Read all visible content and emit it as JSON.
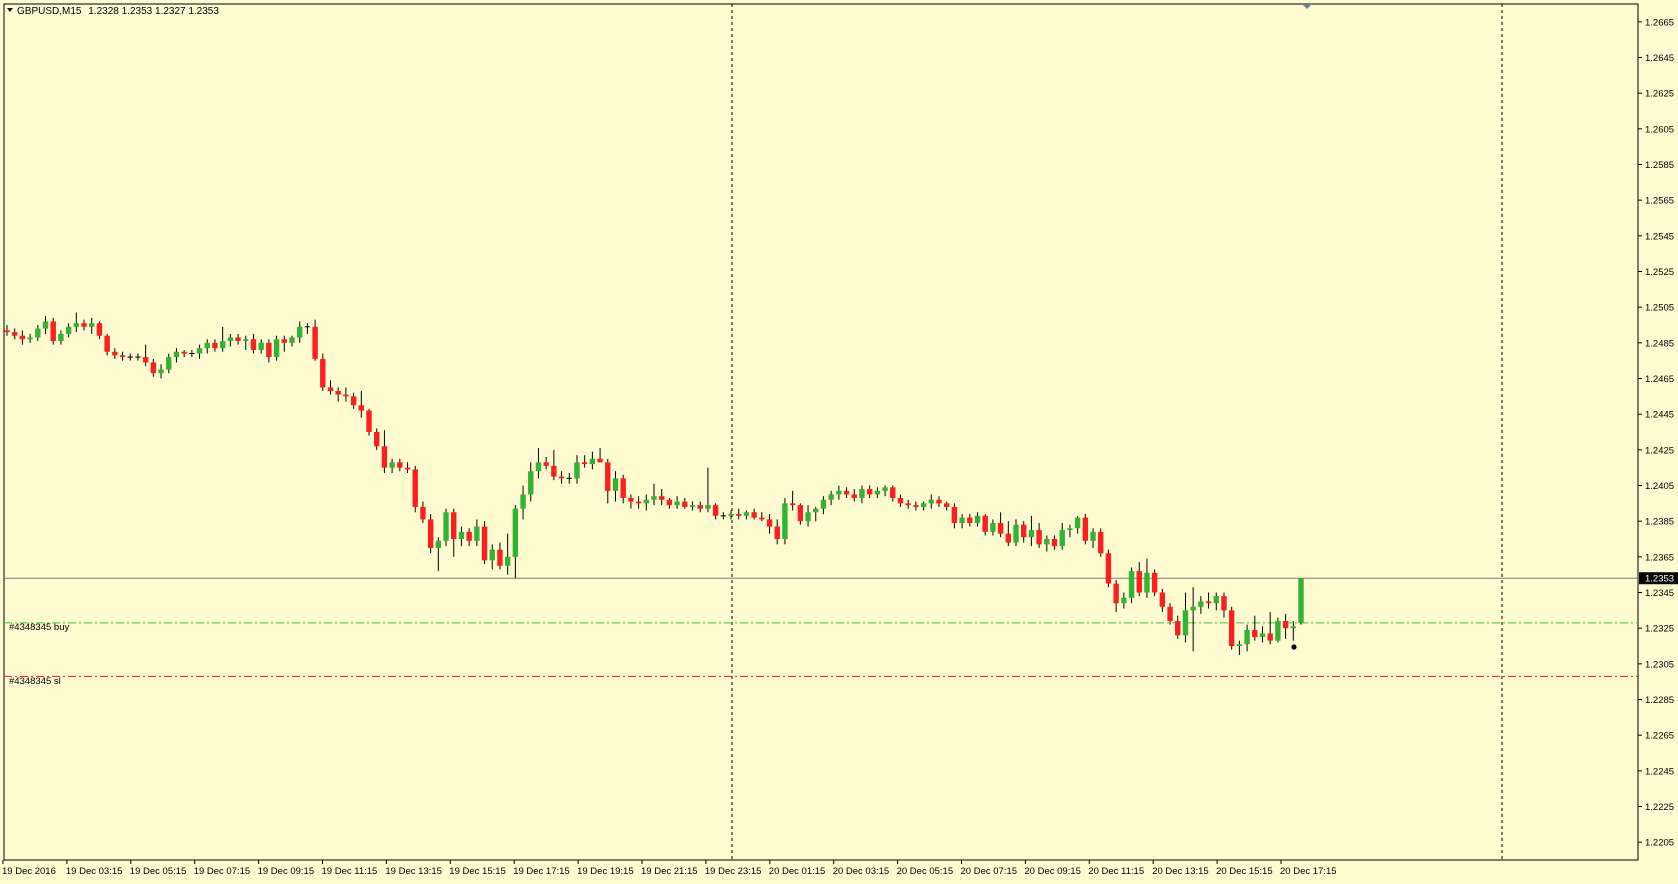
{
  "header": {
    "symbol": "GBPUSD,M15",
    "ohlc": "1.2328 1.2353 1.2327 1.2353"
  },
  "colors": {
    "background": "#fffbd1",
    "bull": "#32b432",
    "bear": "#ff1e1e",
    "wick": "#000000",
    "buy_line": "#32c832",
    "sl_line": "#e01e1e",
    "bid_line": "#7a7a7a",
    "grid_separator": "#000000"
  },
  "orders": {
    "buy_label": "#4348345 buy",
    "sl_label": "#4348345 sl",
    "buy_price": 1.2328,
    "sl_price": 1.2298
  },
  "chart_data": {
    "type": "candlestick",
    "symbol": "GBPUSD",
    "timeframe": "M15",
    "ylim": [
      1.2195,
      1.2675
    ],
    "y_ticks": [
      "1.2665",
      "1.2645",
      "1.2625",
      "1.2605",
      "1.2585",
      "1.2565",
      "1.2545",
      "1.2525",
      "1.2505",
      "1.2485",
      "1.2465",
      "1.2445",
      "1.2425",
      "1.2405",
      "1.2385",
      "1.2365",
      "1.2345",
      "1.2325",
      "1.2305",
      "1.2285",
      "1.2265",
      "1.2245",
      "1.2225",
      "1.2205"
    ],
    "current_price": "1.2353",
    "x_ticks": [
      "19 Dec 2016",
      "19 Dec 03:15",
      "19 Dec 05:15",
      "19 Dec 07:15",
      "19 Dec 09:15",
      "19 Dec 11:15",
      "19 Dec 13:15",
      "19 Dec 15:15",
      "19 Dec 17:15",
      "19 Dec 19:15",
      "19 Dec 21:15",
      "19 Dec 23:15",
      "20 Dec 01:15",
      "20 Dec 03:15",
      "20 Dec 05:15",
      "20 Dec 07:15",
      "20 Dec 09:15",
      "20 Dec 11:15",
      "20 Dec 13:15",
      "20 Dec 15:15",
      "20 Dec 17:15"
    ],
    "candles": [
      [
        1.2492,
        1.2495,
        1.2489,
        1.2491
      ],
      [
        1.2491,
        1.2493,
        1.2487,
        1.2489
      ],
      [
        1.2489,
        1.2492,
        1.2484,
        1.2487
      ],
      [
        1.2487,
        1.249,
        1.2485,
        1.2488
      ],
      [
        1.2488,
        1.2495,
        1.2486,
        1.2493
      ],
      [
        1.2493,
        1.25,
        1.249,
        1.2497
      ],
      [
        1.2497,
        1.2499,
        1.2484,
        1.2486
      ],
      [
        1.2486,
        1.2492,
        1.2484,
        1.249
      ],
      [
        1.249,
        1.2496,
        1.2488,
        1.2494
      ],
      [
        1.2494,
        1.2502,
        1.2491,
        1.2496
      ],
      [
        1.2496,
        1.2498,
        1.2492,
        1.2494
      ],
      [
        1.2494,
        1.2499,
        1.249,
        1.2496
      ],
      [
        1.2496,
        1.2497,
        1.2487,
        1.2489
      ],
      [
        1.2489,
        1.249,
        1.2478,
        1.248
      ],
      [
        1.248,
        1.2482,
        1.2476,
        1.2478
      ],
      [
        1.2478,
        1.248,
        1.2475,
        1.2477
      ],
      [
        1.2477,
        1.2479,
        1.2475,
        1.2477
      ],
      [
        1.2477,
        1.2479,
        1.2475,
        1.2477
      ],
      [
        1.2477,
        1.2484,
        1.2472,
        1.2474
      ],
      [
        1.2474,
        1.2476,
        1.2466,
        1.2468
      ],
      [
        1.2468,
        1.2473,
        1.2465,
        1.247
      ],
      [
        1.247,
        1.2479,
        1.2468,
        1.2477
      ],
      [
        1.2477,
        1.2482,
        1.2474,
        1.248
      ],
      [
        1.248,
        1.2481,
        1.2477,
        1.2479
      ],
      [
        1.2479,
        1.2481,
        1.2477,
        1.2479
      ],
      [
        1.2479,
        1.2484,
        1.2476,
        1.2482
      ],
      [
        1.2482,
        1.2487,
        1.2479,
        1.2485
      ],
      [
        1.2485,
        1.2487,
        1.248,
        1.2482
      ],
      [
        1.2482,
        1.2494,
        1.248,
        1.2486
      ],
      [
        1.2486,
        1.249,
        1.2483,
        1.2488
      ],
      [
        1.2488,
        1.249,
        1.2484,
        1.2486
      ],
      [
        1.2486,
        1.2489,
        1.2481,
        1.2487
      ],
      [
        1.2487,
        1.249,
        1.2479,
        1.2481
      ],
      [
        1.2481,
        1.2487,
        1.2479,
        1.2485
      ],
      [
        1.2485,
        1.2487,
        1.2474,
        1.2477
      ],
      [
        1.2477,
        1.2489,
        1.2475,
        1.2487
      ],
      [
        1.2487,
        1.2489,
        1.248,
        1.2485
      ],
      [
        1.2485,
        1.2489,
        1.2483,
        1.2488
      ],
      [
        1.2488,
        1.2497,
        1.2485,
        1.2494
      ],
      [
        1.2494,
        1.2496,
        1.249,
        1.2494
      ],
      [
        1.2494,
        1.2498,
        1.2475,
        1.2476
      ],
      [
        1.2476,
        1.2479,
        1.2458,
        1.246
      ],
      [
        1.246,
        1.2464,
        1.2456,
        1.2458
      ],
      [
        1.2458,
        1.246,
        1.2452,
        1.2456
      ],
      [
        1.2456,
        1.246,
        1.2452,
        1.2455
      ],
      [
        1.2455,
        1.2457,
        1.2448,
        1.245
      ],
      [
        1.245,
        1.2458,
        1.2443,
        1.2447
      ],
      [
        1.2447,
        1.2448,
        1.2433,
        1.2435
      ],
      [
        1.2435,
        1.2437,
        1.2425,
        1.2427
      ],
      [
        1.2427,
        1.2436,
        1.2412,
        1.2415
      ],
      [
        1.2415,
        1.242,
        1.2412,
        1.2418
      ],
      [
        1.2418,
        1.242,
        1.2413,
        1.2415
      ],
      [
        1.2415,
        1.2418,
        1.2412,
        1.2414
      ],
      [
        1.2414,
        1.2416,
        1.239,
        1.2393
      ],
      [
        1.2393,
        1.2396,
        1.2384,
        1.2386
      ],
      [
        1.2386,
        1.2389,
        1.2367,
        1.237
      ],
      [
        1.237,
        1.2376,
        1.2357,
        1.2374
      ],
      [
        1.2374,
        1.2392,
        1.2371,
        1.239
      ],
      [
        1.239,
        1.2392,
        1.2365,
        1.2375
      ],
      [
        1.2375,
        1.2382,
        1.2371,
        1.2379
      ],
      [
        1.2379,
        1.2381,
        1.2371,
        1.2374
      ],
      [
        1.2374,
        1.2386,
        1.2371,
        1.2382
      ],
      [
        1.2382,
        1.2385,
        1.2361,
        1.2363
      ],
      [
        1.2363,
        1.2372,
        1.2358,
        1.2369
      ],
      [
        1.2369,
        1.2373,
        1.2358,
        1.236
      ],
      [
        1.236,
        1.2378,
        1.2355,
        1.2365
      ],
      [
        1.2365,
        1.2394,
        1.2353,
        1.2392
      ],
      [
        1.2392,
        1.2405,
        1.2386,
        1.24
      ],
      [
        1.24,
        1.2418,
        1.2396,
        1.2413
      ],
      [
        1.2413,
        1.2426,
        1.2409,
        1.2418
      ],
      [
        1.2418,
        1.2421,
        1.2414,
        1.2416
      ],
      [
        1.2416,
        1.2425,
        1.2408,
        1.241
      ],
      [
        1.241,
        1.2413,
        1.2406,
        1.2409
      ],
      [
        1.2409,
        1.2412,
        1.2406,
        1.2409
      ],
      [
        1.2409,
        1.2422,
        1.2406,
        1.2418
      ],
      [
        1.2418,
        1.2422,
        1.2415,
        1.2417
      ],
      [
        1.2417,
        1.2424,
        1.2414,
        1.242
      ],
      [
        1.242,
        1.2426,
        1.2418,
        1.2418
      ],
      [
        1.2418,
        1.242,
        1.2395,
        1.2402
      ],
      [
        1.2402,
        1.2413,
        1.2396,
        1.2409
      ],
      [
        1.2409,
        1.2411,
        1.2395,
        1.2398
      ],
      [
        1.2398,
        1.24,
        1.2392,
        1.2396
      ],
      [
        1.2396,
        1.2399,
        1.2392,
        1.2395
      ],
      [
        1.2395,
        1.24,
        1.2391,
        1.2397
      ],
      [
        1.2397,
        1.2406,
        1.2394,
        1.2399
      ],
      [
        1.2399,
        1.2403,
        1.2394,
        1.2397
      ],
      [
        1.2397,
        1.2398,
        1.2392,
        1.2394
      ],
      [
        1.2394,
        1.2399,
        1.2392,
        1.2396
      ],
      [
        1.2396,
        1.2398,
        1.2392,
        1.2393
      ],
      [
        1.2393,
        1.2396,
        1.2391,
        1.2394
      ],
      [
        1.2394,
        1.2396,
        1.239,
        1.2392
      ],
      [
        1.2392,
        1.2415,
        1.239,
        1.2394
      ],
      [
        1.2394,
        1.2395,
        1.2386,
        1.2388
      ],
      [
        1.2388,
        1.239,
        1.2386,
        1.2388
      ],
      [
        1.2388,
        1.2391,
        1.2386,
        1.2389
      ],
      [
        1.2389,
        1.2392,
        1.2386,
        1.2388
      ],
      [
        1.2388,
        1.2391,
        1.2386,
        1.239
      ],
      [
        1.239,
        1.2392,
        1.2386,
        1.2387
      ],
      [
        1.2387,
        1.239,
        1.2385,
        1.2386
      ],
      [
        1.2386,
        1.2389,
        1.2378,
        1.2382
      ],
      [
        1.2382,
        1.2386,
        1.2372,
        1.2375
      ],
      [
        1.2375,
        1.2398,
        1.2372,
        1.2395
      ],
      [
        1.2395,
        1.2402,
        1.2391,
        1.2394
      ],
      [
        1.2394,
        1.2395,
        1.2383,
        1.2385
      ],
      [
        1.2385,
        1.2394,
        1.2382,
        1.239
      ],
      [
        1.239,
        1.2393,
        1.2385,
        1.2392
      ],
      [
        1.2392,
        1.2399,
        1.2389,
        1.2397
      ],
      [
        1.2397,
        1.2402,
        1.2394,
        1.24
      ],
      [
        1.24,
        1.2405,
        1.2397,
        1.2402
      ],
      [
        1.2402,
        1.2404,
        1.2398,
        1.24
      ],
      [
        1.24,
        1.2403,
        1.2396,
        1.2398
      ],
      [
        1.2398,
        1.2405,
        1.2395,
        1.2403
      ],
      [
        1.2403,
        1.2405,
        1.2398,
        1.24
      ],
      [
        1.24,
        1.2404,
        1.2398,
        1.2402
      ],
      [
        1.2402,
        1.2405,
        1.2399,
        1.2404
      ],
      [
        1.2404,
        1.2405,
        1.2396,
        1.2398
      ],
      [
        1.2398,
        1.24,
        1.2393,
        1.2395
      ],
      [
        1.2395,
        1.2397,
        1.2392,
        1.2394
      ],
      [
        1.2394,
        1.2396,
        1.2391,
        1.2393
      ],
      [
        1.2393,
        1.2396,
        1.2391,
        1.2395
      ],
      [
        1.2395,
        1.24,
        1.2392,
        1.2397
      ],
      [
        1.2397,
        1.2399,
        1.2393,
        1.2395
      ],
      [
        1.2395,
        1.2396,
        1.2391,
        1.2393
      ],
      [
        1.2393,
        1.2395,
        1.2381,
        1.2384
      ],
      [
        1.2384,
        1.2389,
        1.2381,
        1.2387
      ],
      [
        1.2387,
        1.2389,
        1.2382,
        1.2384
      ],
      [
        1.2384,
        1.239,
        1.2382,
        1.2388
      ],
      [
        1.2388,
        1.2389,
        1.2377,
        1.2379
      ],
      [
        1.2379,
        1.2386,
        1.2377,
        1.2384
      ],
      [
        1.2384,
        1.239,
        1.2376,
        1.2378
      ],
      [
        1.2378,
        1.2385,
        1.2371,
        1.2373
      ],
      [
        1.2373,
        1.2386,
        1.2371,
        1.2383
      ],
      [
        1.2383,
        1.2385,
        1.2373,
        1.2376
      ],
      [
        1.2376,
        1.2388,
        1.2371,
        1.238
      ],
      [
        1.238,
        1.2384,
        1.237,
        1.2372
      ],
      [
        1.2372,
        1.2377,
        1.2368,
        1.2375
      ],
      [
        1.2375,
        1.2377,
        1.2369,
        1.2371
      ],
      [
        1.2371,
        1.2384,
        1.2369,
        1.238
      ],
      [
        1.238,
        1.2383,
        1.2376,
        1.2381
      ],
      [
        1.2381,
        1.2388,
        1.2378,
        1.2387
      ],
      [
        1.2387,
        1.2389,
        1.2372,
        1.2374
      ],
      [
        1.2374,
        1.2381,
        1.237,
        1.2379
      ],
      [
        1.2379,
        1.2381,
        1.2365,
        1.2367
      ],
      [
        1.2367,
        1.2369,
        1.2348,
        1.235
      ],
      [
        1.235,
        1.2352,
        1.2334,
        1.2339
      ],
      [
        1.2339,
        1.2345,
        1.2336,
        1.2342
      ],
      [
        1.2342,
        1.2359,
        1.2339,
        1.2357
      ],
      [
        1.2357,
        1.2362,
        1.2343,
        1.2345
      ],
      [
        1.2345,
        1.2364,
        1.2342,
        1.2356
      ],
      [
        1.2356,
        1.2358,
        1.2343,
        1.2345
      ],
      [
        1.2345,
        1.2347,
        1.2334,
        1.2337
      ],
      [
        1.2337,
        1.2339,
        1.2327,
        1.2329
      ],
      [
        1.2329,
        1.2332,
        1.2319,
        1.2321
      ],
      [
        1.2321,
        1.2345,
        1.2317,
        1.2335
      ],
      [
        1.2335,
        1.2348,
        1.2312,
        1.2337
      ],
      [
        1.2337,
        1.2343,
        1.2333,
        1.234
      ],
      [
        1.234,
        1.2345,
        1.2336,
        1.2339
      ],
      [
        1.2339,
        1.2345,
        1.2335,
        1.2343
      ],
      [
        1.2343,
        1.2345,
        1.2331,
        1.2335
      ],
      [
        1.2335,
        1.2337,
        1.2313,
        1.2315
      ],
      [
        1.2315,
        1.2318,
        1.231,
        1.2316
      ],
      [
        1.2316,
        1.2327,
        1.2312,
        1.2324
      ],
      [
        1.2324,
        1.2332,
        1.2318,
        1.232
      ],
      [
        1.232,
        1.2326,
        1.2317,
        1.2322
      ],
      [
        1.2322,
        1.2334,
        1.2316,
        1.2318
      ],
      [
        1.2318,
        1.2331,
        1.2317,
        1.2329
      ],
      [
        1.2329,
        1.2333,
        1.2319,
        1.2325
      ],
      [
        1.2325,
        1.2329,
        1.2318,
        1.2326
      ],
      [
        1.2328,
        1.2353,
        1.2327,
        1.2353
      ]
    ]
  }
}
